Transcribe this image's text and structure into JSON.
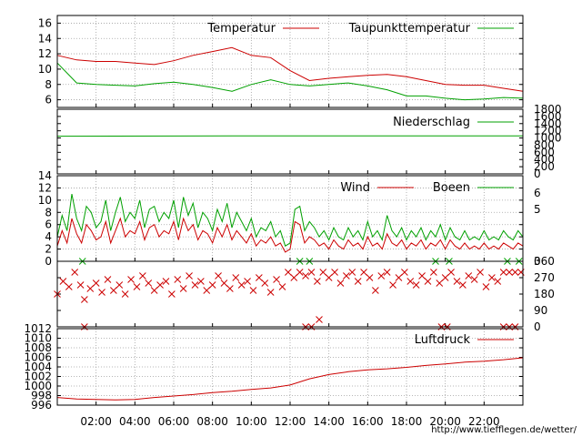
{
  "credit": "http://www.tiefflegen.de/wetter/",
  "time_ticks": [
    "02:00",
    "04:00",
    "06:00",
    "08:00",
    "10:00",
    "12:00",
    "14:00",
    "16:00",
    "18:00",
    "20:00",
    "22:00"
  ],
  "colors": {
    "red": "#cc0000",
    "green": "#00a000",
    "grid": "#a0a0a0"
  },
  "chart_data": [
    {
      "type": "line",
      "panel": "temperature",
      "xlim": [
        0,
        24
      ],
      "ylim": [
        5,
        17
      ],
      "yticks": [
        6,
        8,
        10,
        12,
        14,
        16
      ],
      "grid": true,
      "legend_position": "top",
      "series": [
        {
          "name": "Temperatur",
          "color": "#cc0000",
          "x": [
            0,
            1,
            2,
            3,
            4,
            5,
            6,
            7,
            8,
            9,
            10,
            11,
            12,
            13,
            14,
            15,
            16,
            17,
            18,
            19,
            20,
            21,
            22,
            23,
            24
          ],
          "values": [
            11.8,
            11.2,
            11.0,
            11.0,
            10.8,
            10.6,
            11.1,
            11.8,
            12.3,
            12.8,
            11.8,
            11.5,
            9.8,
            8.5,
            8.8,
            9.0,
            9.2,
            9.3,
            9.0,
            8.5,
            8.0,
            7.9,
            7.9,
            7.5,
            7.1
          ]
        },
        {
          "name": "Taupunkttemperatur",
          "color": "#00a000",
          "x": [
            0,
            1,
            2,
            3,
            4,
            5,
            6,
            7,
            8,
            9,
            10,
            11,
            12,
            13,
            14,
            15,
            16,
            17,
            18,
            19,
            20,
            21,
            22,
            23,
            24
          ],
          "values": [
            10.8,
            8.2,
            8.0,
            7.9,
            7.8,
            8.1,
            8.3,
            8.0,
            7.6,
            7.1,
            8.0,
            8.6,
            8.0,
            7.8,
            8.0,
            8.2,
            7.8,
            7.3,
            6.5,
            6.5,
            6.2,
            6.0,
            6.1,
            6.3,
            6.2
          ]
        }
      ]
    },
    {
      "type": "line",
      "panel": "precipitation",
      "xlim": [
        0,
        24
      ],
      "ylim": [
        0,
        1800
      ],
      "yticks": [
        0,
        200,
        400,
        600,
        800,
        1000,
        1200,
        1400,
        1600,
        1800
      ],
      "grid": false,
      "legend_position": "top-right",
      "series": [
        {
          "name": "Niederschlag",
          "color": "#00a000",
          "x": [
            0,
            12,
            24
          ],
          "values": [
            1050,
            1060,
            1060
          ]
        }
      ]
    },
    {
      "type": "line",
      "panel": "wind",
      "xlim": [
        0,
        24
      ],
      "ylim": [
        0,
        14
      ],
      "yticks": [
        0,
        2,
        4,
        6,
        8,
        10,
        12,
        14
      ],
      "secondary_yticks": [
        0,
        5,
        6
      ],
      "grid": true,
      "legend_position": "top-right",
      "series": [
        {
          "name": "Wind",
          "color": "#cc0000",
          "x": [
            0,
            0.25,
            0.5,
            0.75,
            1,
            1.25,
            1.5,
            1.75,
            2,
            2.25,
            2.5,
            2.75,
            3,
            3.25,
            3.5,
            3.75,
            4,
            4.25,
            4.5,
            4.75,
            5,
            5.25,
            5.5,
            5.75,
            6,
            6.25,
            6.5,
            6.75,
            7,
            7.25,
            7.5,
            7.75,
            8,
            8.25,
            8.5,
            8.75,
            9,
            9.25,
            9.5,
            9.75,
            10,
            10.25,
            10.5,
            10.75,
            11,
            11.25,
            11.5,
            11.75,
            12,
            12.25,
            12.5,
            12.75,
            13,
            13.25,
            13.5,
            13.75,
            14,
            14.25,
            14.5,
            14.75,
            15,
            15.25,
            15.5,
            15.75,
            16,
            16.25,
            16.5,
            16.75,
            17,
            17.25,
            17.5,
            17.75,
            18,
            18.25,
            18.5,
            18.75,
            19,
            19.25,
            19.5,
            19.75,
            20,
            20.25,
            20.5,
            20.75,
            21,
            21.25,
            21.5,
            21.75,
            22,
            22.25,
            22.5,
            22.75,
            23,
            23.25,
            23.5,
            23.75,
            24
          ],
          "values": [
            2.5,
            5,
            3,
            7,
            4.5,
            3,
            6,
            5,
            3.5,
            4,
            6.5,
            3,
            5,
            7,
            4,
            5,
            4.5,
            6.5,
            3.5,
            5.5,
            6,
            4,
            5,
            4.5,
            6.5,
            3.5,
            7,
            5,
            6,
            3.5,
            5,
            4.5,
            3,
            5.5,
            4,
            6,
            3.5,
            5,
            4,
            3,
            4.5,
            2.5,
            3.5,
            3,
            4,
            2.5,
            3,
            1.5,
            2,
            6.5,
            6,
            3,
            4,
            3.5,
            2.5,
            3,
            2,
            3.5,
            2.5,
            2,
            3.5,
            2.5,
            3,
            2,
            4,
            2.5,
            3,
            2,
            4.5,
            3,
            2.5,
            3.5,
            2,
            3,
            2.5,
            3.5,
            2,
            3,
            2.5,
            3.5,
            2,
            3.5,
            2.5,
            2,
            3,
            2,
            2.5,
            2,
            3,
            2,
            2.5,
            2,
            3,
            2.5,
            2,
            3,
            2.5
          ]
        },
        {
          "name": "Boeen",
          "color": "#00a000",
          "x": [
            0,
            0.25,
            0.5,
            0.75,
            1,
            1.25,
            1.5,
            1.75,
            2,
            2.25,
            2.5,
            2.75,
            3,
            3.25,
            3.5,
            3.75,
            4,
            4.25,
            4.5,
            4.75,
            5,
            5.25,
            5.5,
            5.75,
            6,
            6.25,
            6.5,
            6.75,
            7,
            7.25,
            7.5,
            7.75,
            8,
            8.25,
            8.5,
            8.75,
            9,
            9.25,
            9.5,
            9.75,
            10,
            10.25,
            10.5,
            10.75,
            11,
            11.25,
            11.5,
            11.75,
            12,
            12.25,
            12.5,
            12.75,
            13,
            13.25,
            13.5,
            13.75,
            14,
            14.25,
            14.5,
            14.75,
            15,
            15.25,
            15.5,
            15.75,
            16,
            16.25,
            16.5,
            16.75,
            17,
            17.25,
            17.5,
            17.75,
            18,
            18.25,
            18.5,
            18.75,
            19,
            19.25,
            19.5,
            19.75,
            20,
            20.25,
            20.5,
            20.75,
            21,
            21.25,
            21.5,
            21.75,
            22,
            22.25,
            22.5,
            22.75,
            23,
            23.25,
            23.5,
            23.75,
            24
          ],
          "values": [
            4,
            7.5,
            5,
            11,
            7,
            5,
            9,
            8,
            5.5,
            6.5,
            10,
            5,
            8,
            10.5,
            6.5,
            8,
            7,
            10,
            5.5,
            8.5,
            9,
            6.5,
            8,
            7,
            10,
            5.5,
            10.5,
            7.5,
            9.5,
            5.5,
            8,
            7,
            5,
            8.5,
            6.5,
            9.5,
            5.5,
            8,
            6.5,
            5,
            7,
            4,
            5.5,
            5,
            6.5,
            4,
            5,
            2.5,
            3,
            8.5,
            9,
            5,
            6.5,
            5.5,
            4,
            5,
            3.5,
            5.5,
            4,
            3.5,
            5.5,
            4,
            5,
            3.5,
            6.5,
            4,
            5,
            3.5,
            7.5,
            5,
            4,
            5.5,
            3.5,
            5,
            4,
            5.5,
            3.5,
            5,
            4,
            6,
            3.5,
            5.5,
            4,
            3.5,
            5,
            3.5,
            4,
            3.5,
            5,
            3.5,
            4,
            3.5,
            5,
            4,
            3.5,
            5,
            4
          ]
        }
      ]
    },
    {
      "type": "scatter",
      "panel": "wind-direction",
      "xlim": [
        0,
        24
      ],
      "ylim": [
        0,
        360
      ],
      "yticks": [
        0,
        90,
        180,
        270,
        360
      ],
      "grid": false,
      "series": [
        {
          "name": "",
          "color": "#cc0000",
          "marker": "x",
          "x": [
            0,
            0.3,
            0.6,
            0.9,
            1.2,
            1.4,
            1.7,
            2.0,
            2.3,
            2.6,
            2.9,
            3.2,
            3.5,
            3.8,
            4.1,
            4.4,
            4.7,
            5.0,
            5.3,
            5.6,
            5.9,
            6.2,
            6.5,
            6.8,
            7.1,
            7.4,
            7.7,
            8.0,
            8.3,
            8.6,
            8.9,
            9.2,
            9.5,
            9.8,
            10.1,
            10.4,
            10.7,
            11.0,
            11.3,
            11.6,
            11.9,
            12.2,
            12.5,
            12.8,
            13.1,
            13.4,
            13.7,
            14.0,
            14.3,
            14.6,
            14.9,
            15.2,
            15.5,
            15.8,
            16.1,
            16.4,
            16.7,
            17.0,
            17.3,
            17.6,
            17.9,
            18.2,
            18.5,
            18.8,
            19.1,
            19.4,
            19.7,
            20.0,
            20.3,
            20.6,
            20.9,
            21.2,
            21.5,
            21.8,
            22.1,
            22.4,
            22.7,
            23.0,
            23.3,
            23.6,
            23.9,
            1.4,
            12.8,
            13.1,
            19.8,
            20.1,
            23.0,
            23.3,
            23.6,
            13.5
          ],
          "values": [
            180,
            250,
            220,
            300,
            230,
            150,
            210,
            240,
            190,
            260,
            200,
            230,
            180,
            260,
            220,
            280,
            240,
            200,
            230,
            250,
            180,
            260,
            210,
            280,
            230,
            250,
            200,
            230,
            280,
            240,
            210,
            270,
            230,
            250,
            200,
            270,
            240,
            190,
            260,
            220,
            300,
            270,
            300,
            280,
            300,
            250,
            300,
            270,
            300,
            240,
            280,
            300,
            250,
            300,
            270,
            200,
            280,
            300,
            230,
            270,
            300,
            250,
            230,
            280,
            250,
            300,
            240,
            270,
            300,
            250,
            230,
            280,
            260,
            300,
            220,
            270,
            250,
            300,
            300,
            300,
            300,
            0,
            0,
            0,
            0,
            0,
            0,
            0,
            0,
            40
          ]
        },
        {
          "name": "",
          "color": "#00a000",
          "marker": "x",
          "x": [
            1.3,
            12.5,
            13.0,
            19.5,
            20.2,
            23.2,
            23.8
          ],
          "values": [
            360,
            360,
            360,
            360,
            360,
            360,
            360
          ]
        }
      ]
    },
    {
      "type": "line",
      "panel": "pressure",
      "xlim": [
        0,
        24
      ],
      "ylim": [
        996,
        1012
      ],
      "yticks": [
        996,
        998,
        1000,
        1002,
        1004,
        1006,
        1008,
        1010,
        1012
      ],
      "grid": true,
      "legend_position": "top-right",
      "series": [
        {
          "name": "Luftdruck",
          "color": "#cc0000",
          "x": [
            0,
            1,
            2,
            3,
            4,
            5,
            6,
            7,
            8,
            9,
            10,
            11,
            12,
            13,
            14,
            15,
            16,
            17,
            18,
            19,
            20,
            21,
            22,
            23,
            24
          ],
          "values": [
            997.6,
            997.3,
            997.2,
            997.1,
            997.2,
            997.6,
            997.9,
            998.2,
            998.6,
            998.9,
            999.3,
            999.6,
            1000.2,
            1001.5,
            1002.4,
            1003.0,
            1003.4,
            1003.6,
            1003.9,
            1004.3,
            1004.6,
            1005.0,
            1005.2,
            1005.5,
            1005.9
          ]
        }
      ]
    }
  ]
}
